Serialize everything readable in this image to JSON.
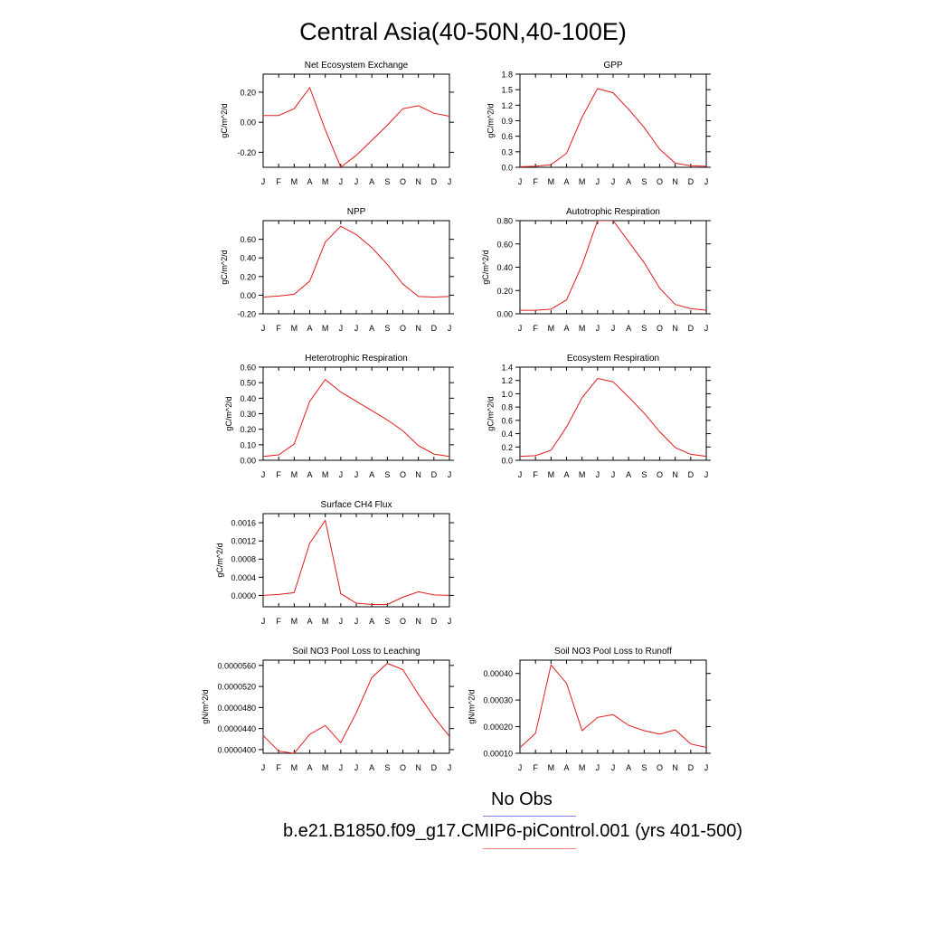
{
  "title": "Central Asia(40-50N,40-100E)",
  "months": [
    "J",
    "F",
    "M",
    "A",
    "M",
    "J",
    "J",
    "A",
    "S",
    "O",
    "N",
    "D",
    "J"
  ],
  "line_color": "#e41a1c",
  "legend": {
    "obs_label": "No Obs",
    "obs_color": "#8080ff",
    "model_label": "b.e21.B1850.f09_g17.CMIP6-piControl.001 (yrs 401-500)",
    "model_color": "#ff8080"
  },
  "chart_data": [
    {
      "type": "line",
      "title": "Net Ecosystem Exchange",
      "ylabel": "gC/m^2/d",
      "ylim": [
        -0.3,
        0.32
      ],
      "yticks": [
        -0.2,
        0.0,
        0.2
      ],
      "ytick_labels": [
        "-0.20",
        "0.00",
        "0.20"
      ],
      "values": [
        0.045,
        0.045,
        0.09,
        0.23,
        -0.05,
        -0.3,
        -0.22,
        -0.12,
        -0.02,
        0.09,
        0.11,
        0.06,
        0.04
      ]
    },
    {
      "type": "line",
      "title": "GPP",
      "ylabel": "gC/m^2/d",
      "ylim": [
        0,
        1.8
      ],
      "yticks": [
        0.0,
        0.3,
        0.6,
        0.9,
        1.2,
        1.5,
        1.8
      ],
      "ytick_labels": [
        "0.0",
        "0.3",
        "0.6",
        "0.9",
        "1.2",
        "1.5",
        "1.8"
      ],
      "values": [
        0.01,
        0.02,
        0.05,
        0.27,
        0.97,
        1.52,
        1.44,
        1.12,
        0.77,
        0.35,
        0.08,
        0.03,
        0.02
      ]
    },
    {
      "type": "line",
      "title": "NPP",
      "ylabel": "gC/m^2/d",
      "ylim": [
        -0.2,
        0.8
      ],
      "yticks": [
        -0.2,
        0.0,
        0.2,
        0.4,
        0.6
      ],
      "ytick_labels": [
        "-0.20",
        "0.00",
        "0.20",
        "0.40",
        "0.60"
      ],
      "values": [
        -0.02,
        -0.01,
        0.01,
        0.15,
        0.57,
        0.74,
        0.65,
        0.51,
        0.33,
        0.12,
        -0.015,
        -0.02,
        -0.015
      ]
    },
    {
      "type": "line",
      "title": "Autotrophic Respiration",
      "ylabel": "gC/m^2/d",
      "ylim": [
        0,
        0.8
      ],
      "yticks": [
        0.0,
        0.2,
        0.4,
        0.6,
        0.8
      ],
      "ytick_labels": [
        "0.00",
        "0.20",
        "0.40",
        "0.60",
        "0.80"
      ],
      "values": [
        0.03,
        0.03,
        0.04,
        0.12,
        0.42,
        0.8,
        0.8,
        0.62,
        0.44,
        0.22,
        0.08,
        0.045,
        0.03
      ]
    },
    {
      "type": "line",
      "title": "Heterotrophic Respiration",
      "ylabel": "gC/m^2/d",
      "ylim": [
        0,
        0.6
      ],
      "yticks": [
        0.0,
        0.1,
        0.2,
        0.3,
        0.4,
        0.5,
        0.6
      ],
      "ytick_labels": [
        "0.00",
        "0.10",
        "0.20",
        "0.30",
        "0.40",
        "0.50",
        "0.60"
      ],
      "values": [
        0.025,
        0.035,
        0.105,
        0.38,
        0.52,
        0.44,
        0.38,
        0.32,
        0.26,
        0.19,
        0.095,
        0.04,
        0.025
      ]
    },
    {
      "type": "line",
      "title": "Ecosystem Respiration",
      "ylabel": "gC/m^2/d",
      "ylim": [
        0,
        1.4
      ],
      "yticks": [
        0.0,
        0.2,
        0.4,
        0.6,
        0.8,
        1.0,
        1.2,
        1.4
      ],
      "ytick_labels": [
        "0.0",
        "0.2",
        "0.4",
        "0.6",
        "0.8",
        "1.0",
        "1.2",
        "1.4"
      ],
      "values": [
        0.06,
        0.07,
        0.15,
        0.5,
        0.94,
        1.23,
        1.18,
        0.95,
        0.71,
        0.43,
        0.19,
        0.09,
        0.06
      ]
    },
    {
      "type": "line",
      "title": "Surface CH4 Flux",
      "ylabel": "gC/m^2/d",
      "ylim": [
        -0.00025,
        0.0018
      ],
      "yticks": [
        0.0,
        0.0004,
        0.0008,
        0.0012,
        0.0016
      ],
      "ytick_labels": [
        "0.0000",
        "0.0004",
        "0.0008",
        "0.0012",
        "0.0016"
      ],
      "values": [
        0.0,
        2e-05,
        6e-05,
        0.00115,
        0.00165,
        4e-05,
        -0.00017,
        -0.0002,
        -0.0002,
        -4e-05,
        8e-05,
        1e-05,
        0.0
      ]
    },
    {
      "type": "line",
      "title": "Soil NO3 Pool Loss to Leaching",
      "ylabel": "gN/m^2/d",
      "ylim": [
        3.93e-05,
        5.7e-05
      ],
      "yticks": [
        4e-05,
        4.4e-05,
        4.8e-05,
        5.2e-05,
        5.6e-05
      ],
      "ytick_labels": [
        "0.0000400",
        "0.0000440",
        "0.0000480",
        "0.0000520",
        "0.0000560"
      ],
      "values": [
        4.27e-05,
        3.97e-05,
        3.93e-05,
        4.29e-05,
        4.46e-05,
        4.13e-05,
        4.7e-05,
        5.37e-05,
        5.64e-05,
        5.52e-05,
        5.05e-05,
        4.62e-05,
        4.25e-05
      ]
    },
    {
      "type": "line",
      "title": "Soil NO3 Pool Loss to Runoff",
      "ylabel": "gN/m^2/d",
      "ylim": [
        0.0001,
        0.00045
      ],
      "yticks": [
        0.0001,
        0.0002,
        0.0003,
        0.0004
      ],
      "ytick_labels": [
        "0.00010",
        "0.00020",
        "0.00030",
        "0.00040"
      ],
      "values": [
        0.000121,
        0.000175,
        0.000432,
        0.000363,
        0.000185,
        0.000235,
        0.000245,
        0.000205,
        0.000185,
        0.000172,
        0.000188,
        0.000135,
        0.000122
      ]
    }
  ]
}
